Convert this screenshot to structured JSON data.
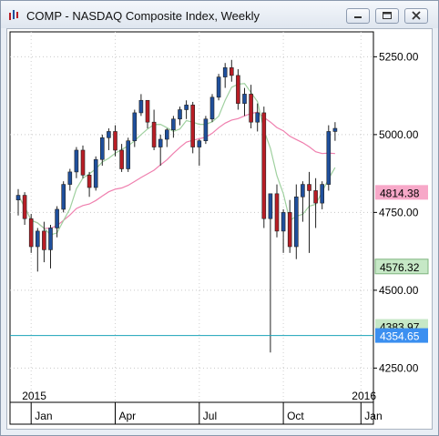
{
  "window": {
    "title": "COMP - NASDAQ Composite Index, Weekly",
    "buttons": [
      "minimize",
      "maximize",
      "close"
    ],
    "icon": "chart-app-icon"
  },
  "colors": {
    "up": "#1f4f9c",
    "down": "#b81d25",
    "ma_short": "#9fd09f",
    "ma_long": "#ef7fae",
    "hline": "#1aa3b8",
    "price_badge": "#3b8ff0",
    "ma_long_badge": "#f7a8c8",
    "ma_short_badge": "#c6e8c6"
  },
  "chart_data": {
    "type": "candlestick",
    "title": "COMP - NASDAQ Composite Index, Weekly",
    "y_ticks": [
      4250,
      4500,
      4750,
      5000,
      5250
    ],
    "y_tick_labels": [
      "4250.00",
      "4500.00",
      "4750.00",
      "5000.00",
      "5250.00"
    ],
    "ylim": [
      4140,
      5330
    ],
    "x_month_labels": [
      "Jan",
      "Apr",
      "Jul",
      "Oct",
      "Jan"
    ],
    "x_month_weeks": [
      2,
      15,
      28,
      41,
      53
    ],
    "x_year_labels": [
      "2015",
      "2016"
    ],
    "x_year_weeks": [
      2,
      53
    ],
    "hline_value": 4354.65,
    "price_labels": [
      {
        "text": "4814.38",
        "value": 4814.38,
        "style": "ma_long"
      },
      {
        "text": "4576.32",
        "value": 4576.32,
        "style": "ma_short"
      },
      {
        "text": "4383.97",
        "value": 4383.97,
        "style": "partial"
      },
      {
        "text": "4354.65",
        "value": 4354.65,
        "style": "price"
      }
    ],
    "candles": [
      [
        4790,
        4825,
        4740,
        4805
      ],
      [
        4805,
        4815,
        4710,
        4730
      ],
      [
        4730,
        4745,
        4620,
        4640
      ],
      [
        4640,
        4700,
        4560,
        4690
      ],
      [
        4690,
        4720,
        4590,
        4630
      ],
      [
        4630,
        4710,
        4570,
        4700
      ],
      [
        4700,
        4770,
        4670,
        4760
      ],
      [
        4760,
        4850,
        4750,
        4840
      ],
      [
        4840,
        4890,
        4820,
        4880
      ],
      [
        4880,
        4960,
        4860,
        4950
      ],
      [
        4950,
        4965,
        4860,
        4870
      ],
      [
        4870,
        4880,
        4800,
        4830
      ],
      [
        4830,
        4930,
        4820,
        4920
      ],
      [
        4920,
        5000,
        4900,
        4990
      ],
      [
        4990,
        5020,
        4950,
        5010
      ],
      [
        5010,
        5030,
        4930,
        4950
      ],
      [
        4950,
        4970,
        4880,
        4890
      ],
      [
        4890,
        4990,
        4880,
        4980
      ],
      [
        4980,
        5080,
        4960,
        5070
      ],
      [
        5070,
        5130,
        5060,
        5110
      ],
      [
        5110,
        5110,
        5020,
        5040
      ],
      [
        5040,
        5080,
        4950,
        4960
      ],
      [
        4960,
        5000,
        4900,
        4985
      ],
      [
        4985,
        5020,
        4960,
        5015
      ],
      [
        5015,
        5060,
        4990,
        5050
      ],
      [
        5050,
        5090,
        5030,
        5080
      ],
      [
        5080,
        5110,
        5050,
        5095
      ],
      [
        5095,
        5105,
        4940,
        4960
      ],
      [
        4960,
        4985,
        4900,
        4980
      ],
      [
        4980,
        5060,
        4970,
        5050
      ],
      [
        5050,
        5130,
        5040,
        5120
      ],
      [
        5120,
        5195,
        5110,
        5185
      ],
      [
        5185,
        5230,
        5150,
        5215
      ],
      [
        5215,
        5240,
        5170,
        5190
      ],
      [
        5190,
        5210,
        5080,
        5100
      ],
      [
        5100,
        5150,
        5060,
        5130
      ],
      [
        5130,
        5160,
        5020,
        5040
      ],
      [
        5040,
        5100,
        5010,
        5070
      ],
      [
        5070,
        5090,
        4700,
        4730
      ],
      [
        4730,
        4810,
        4300,
        4810
      ],
      [
        4810,
        4840,
        4670,
        4690
      ],
      [
        4690,
        4760,
        4620,
        4750
      ],
      [
        4750,
        4790,
        4620,
        4640
      ],
      [
        4640,
        4840,
        4600,
        4800
      ],
      [
        4800,
        4850,
        4720,
        4840
      ],
      [
        4840,
        4880,
        4620,
        4820
      ],
      [
        4820,
        4860,
        4700,
        4780
      ],
      [
        4780,
        4850,
        4760,
        4840
      ],
      [
        4840,
        5030,
        4820,
        5010
      ],
      [
        5010,
        5040,
        4980,
        5020
      ]
    ]
  }
}
